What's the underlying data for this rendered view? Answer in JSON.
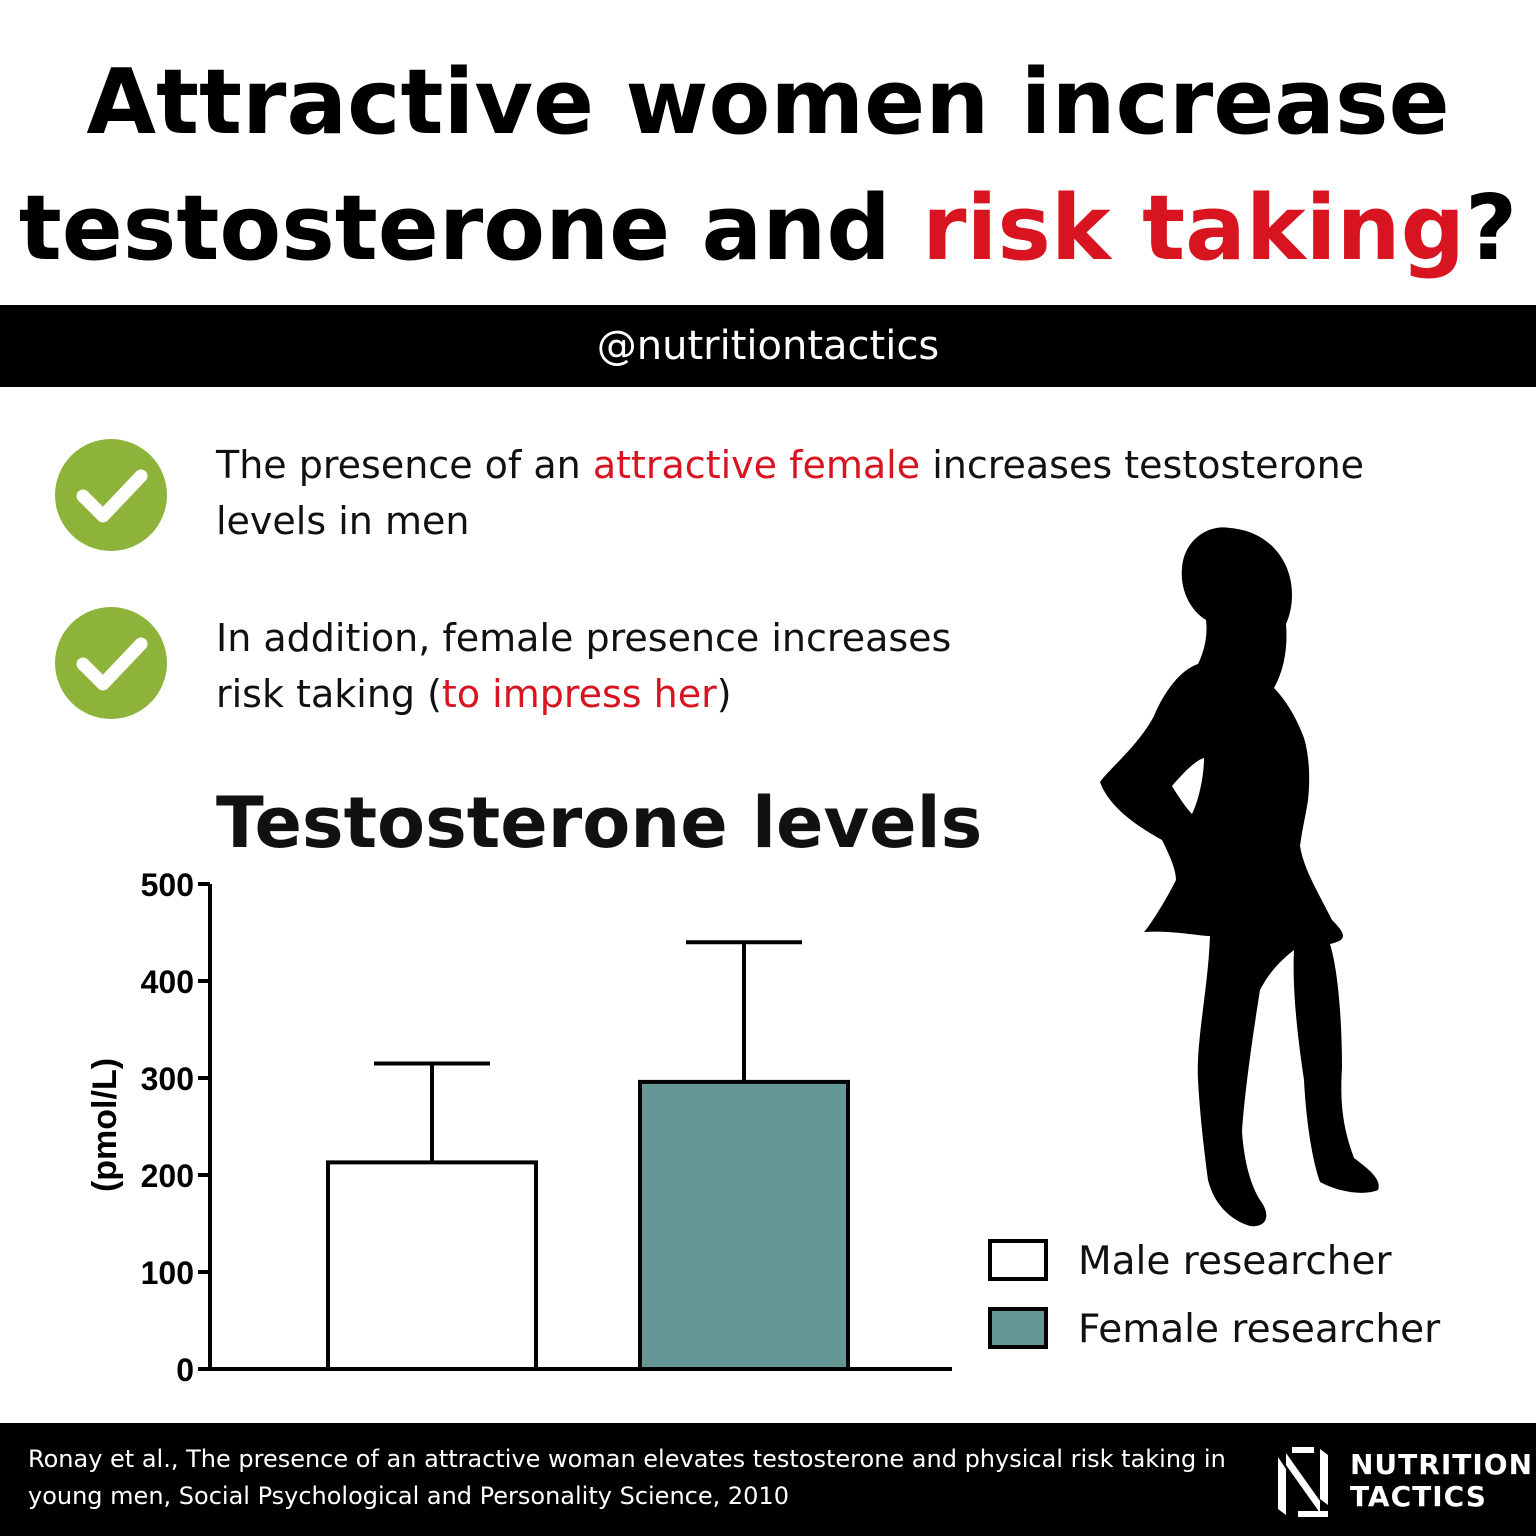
{
  "headline": {
    "line1": "Attractive women increase",
    "line2_prefix": "testosterone and ",
    "line2_accent": "risk taking",
    "line2_suffix": "?"
  },
  "handle": "@nutritiontactics",
  "points": [
    {
      "prefix": "The presence of an ",
      "accent": "attractive female",
      "suffix": " increases testosterone",
      "line2": "levels in men"
    },
    {
      "line1": "In addition, female presence increases",
      "prefix2": "risk taking (",
      "accent2": "to impress her",
      "suffix2": ")"
    }
  ],
  "chart_data": {
    "type": "bar",
    "title": "Testosterone levels",
    "ylabel": "(pmol/L)",
    "ylim": [
      0,
      500
    ],
    "yticks": [
      "0",
      "100",
      "200",
      "300",
      "400",
      "500"
    ],
    "series": [
      {
        "name": "Male researcher",
        "value": 213,
        "error_upper": 315,
        "color": "#ffffff"
      },
      {
        "name": "Female researcher",
        "value": 296,
        "error_upper": 440,
        "color": "#649696"
      }
    ],
    "legend_position": "bottom-right"
  },
  "footer": {
    "citation_line1": "Ronay et al., The presence of an attractive woman elevates testosterone and physical risk taking in",
    "citation_line2": "young men, Social Psychological and Personality Science, 2010",
    "logo_line1": "NUTRITION",
    "logo_line2": "TACTICS"
  },
  "colors": {
    "accent": "#d7141f",
    "check": "#8db33a",
    "female_bar": "#649696"
  },
  "icons": {
    "check": "checkmark-icon",
    "silhouette": "woman-silhouette-icon",
    "logo": "nutrition-tactics-logo-icon"
  }
}
